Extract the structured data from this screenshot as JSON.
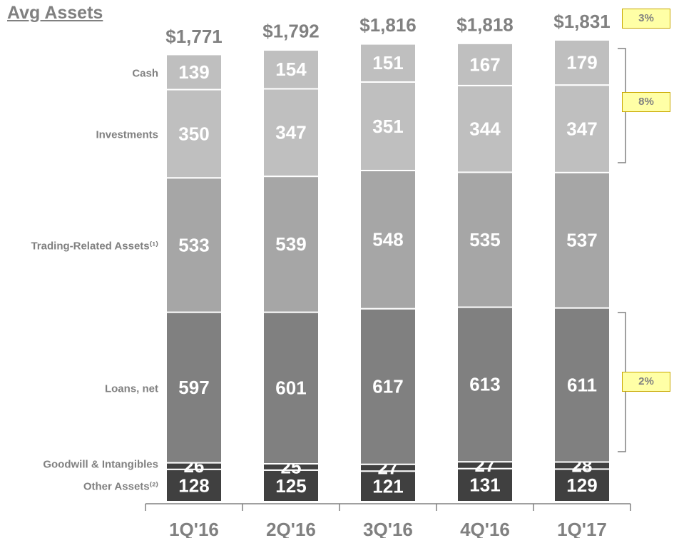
{
  "chart_data": {
    "type": "stacked_bar",
    "title": "Avg Assets",
    "categories": [
      "1Q'16",
      "2Q'16",
      "3Q'16",
      "4Q'16",
      "1Q'17"
    ],
    "series": [
      {
        "name": "Other Assets⁽²⁾",
        "color": "#404040",
        "values": [
          128,
          125,
          121,
          131,
          129
        ]
      },
      {
        "name": "Goodwill & Intangibles",
        "color": "#404040",
        "values": [
          26,
          25,
          27,
          27,
          28
        ]
      },
      {
        "name": "Loans, net",
        "color": "#808080",
        "values": [
          597,
          601,
          617,
          613,
          611
        ]
      },
      {
        "name": "Trading-Related Assets⁽¹⁾",
        "color": "#a6a6a6",
        "values": [
          533,
          539,
          548,
          535,
          537
        ]
      },
      {
        "name": "Investments",
        "color": "#bfbfbf",
        "values": [
          350,
          347,
          351,
          344,
          347
        ]
      },
      {
        "name": "Cash",
        "color": "#bfbfbf",
        "values": [
          139,
          154,
          151,
          167,
          179
        ]
      }
    ],
    "totals": [
      1771,
      1792,
      1816,
      1818,
      1831
    ],
    "total_labels": [
      "$1,771",
      "$1,792",
      "$1,816",
      "$1,818",
      "$1,831"
    ],
    "annotations": [
      {
        "text": "3%"
      },
      {
        "text": "8%"
      },
      {
        "text": "2%"
      }
    ]
  }
}
